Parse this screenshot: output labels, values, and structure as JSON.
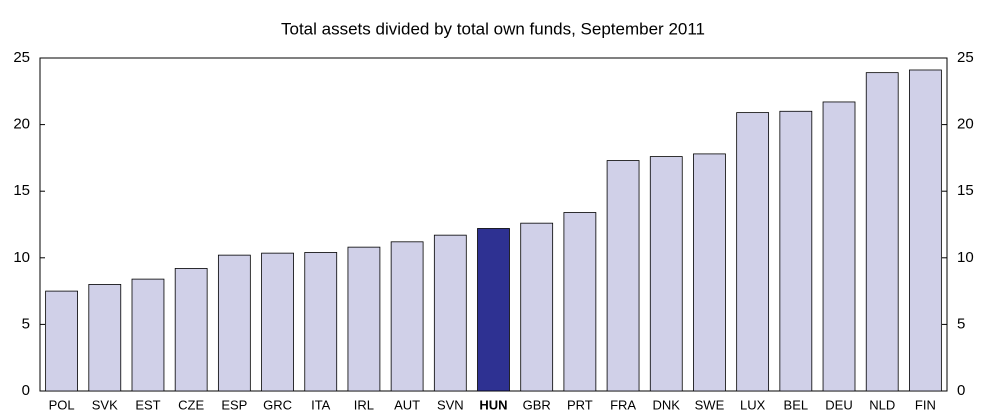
{
  "chart_data": {
    "type": "bar",
    "title": "Total assets divided by total own funds, September 2011",
    "categories": [
      "POL",
      "SVK",
      "EST",
      "CZE",
      "ESP",
      "GRC",
      "ITA",
      "IRL",
      "AUT",
      "SVN",
      "HUN",
      "GBR",
      "PRT",
      "FRA",
      "DNK",
      "SWE",
      "LUX",
      "BEL",
      "DEU",
      "NLD",
      "FIN"
    ],
    "values": [
      7.5,
      8.0,
      8.4,
      9.2,
      10.2,
      10.35,
      10.4,
      10.8,
      11.2,
      11.7,
      12.2,
      12.6,
      13.4,
      17.3,
      17.6,
      17.8,
      20.9,
      21.0,
      21.7,
      23.9,
      24.1
    ],
    "colors": [
      "#d0d0e8",
      "#d0d0e8",
      "#d0d0e8",
      "#d0d0e8",
      "#d0d0e8",
      "#d0d0e8",
      "#d0d0e8",
      "#d0d0e8",
      "#d0d0e8",
      "#d0d0e8",
      "#2e3192",
      "#d0d0e8",
      "#d0d0e8",
      "#d0d0e8",
      "#d0d0e8",
      "#d0d0e8",
      "#d0d0e8",
      "#d0d0e8",
      "#d0d0e8",
      "#d0d0e8",
      "#d0d0e8"
    ],
    "ylim": [
      0,
      25
    ],
    "yticks": [
      0,
      5,
      10,
      15,
      20,
      25
    ],
    "y2lim": [
      0,
      25
    ],
    "y2ticks": [
      0,
      5,
      10,
      15,
      20,
      25
    ],
    "grid": false
  }
}
